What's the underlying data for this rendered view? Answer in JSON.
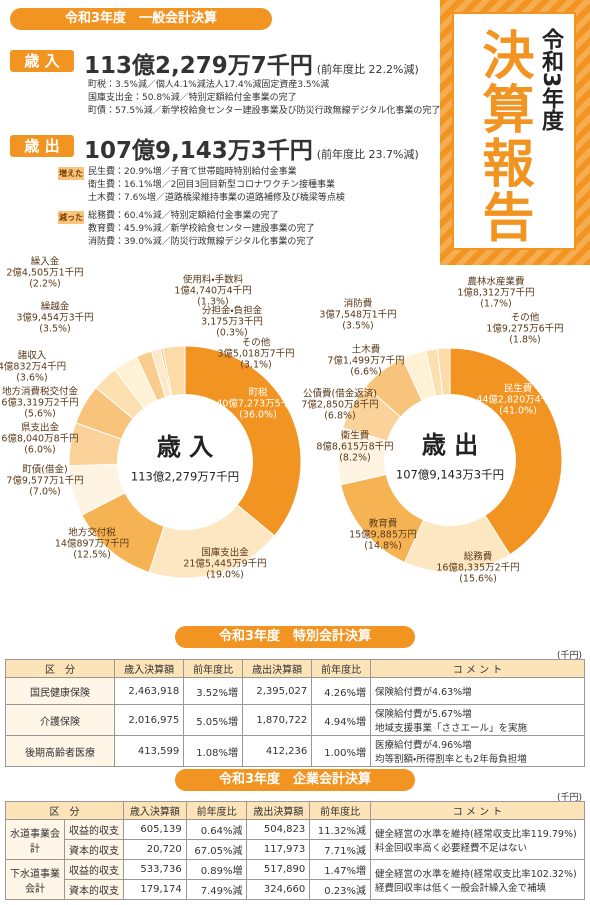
{
  "header": {
    "title": "令和3年度　一般会計決算",
    "badge_year": "令和3年度",
    "badge_title": "決算報告"
  },
  "revenue": {
    "label": "歳 入",
    "amount": "113億2,279万7千円",
    "change": "(前年度比 22.2%減)",
    "notes": [
      "町税：3.5%減／個人4.1%減法人17.4%減固定資産3.5%減",
      "国庫支出金：50.8%減／特別定額給付金事業の完了",
      "町債：57.5%減／新学校給食センター建設事業及び防災行政無線デジタル化事業の完了"
    ]
  },
  "expenditure": {
    "label": "歳 出",
    "amount": "107億9,143万3千円",
    "change": "(前年度比 23.7%減)",
    "increased": {
      "label": "増えた",
      "items": [
        "民生費：20.9%増／子育て世帯臨時特別給付金事業",
        "衛生費：16.1%増／2回目3回目新型コロナワクチン接種事業",
        "土木費：7.6%増／道路橋梁維持事業の道路補修及び橋梁等点検"
      ]
    },
    "decreased": {
      "label": "減った",
      "items": [
        "総務費：60.4%減／特別定額給付金事業の完了",
        "教育費：45.9%減／新学校給食センター建設事業の完了",
        "消防費：39.0%減／防災行政無線デジタル化事業の完了"
      ]
    }
  },
  "chart_data": [
    {
      "type": "pie",
      "center_label": "歳 入",
      "center_amount": "113億2,279万7千円",
      "categories": [
        "町税",
        "国庫支出金",
        "地方交付税",
        "町債(借金)",
        "県支出金",
        "地方消費税交付金",
        "諸収入",
        "繰越金",
        "繰入金",
        "使用料・手数料",
        "分担金・負担金",
        "その他"
      ],
      "values": [
        4072735,
        2154459,
        1408977,
        795771,
        680408,
        633192,
        408324,
        394543,
        245051,
        147404,
        31753,
        350187
      ],
      "value_labels": [
        "40億7,273万5千円",
        "21億5,445万9千円",
        "14億897万7千円",
        "7億9,577万1千円",
        "6億8,040万8千円",
        "6億3,319万2千円",
        "4億832万4千円",
        "3億9,454万3千円",
        "2億4,505万1千円",
        "1億4,740万4千円",
        "3,175万3千円",
        "3億5,018万7千円"
      ],
      "percents": [
        36.0,
        19.0,
        12.5,
        7.0,
        6.0,
        5.6,
        3.6,
        3.5,
        2.2,
        1.3,
        0.3,
        3.1
      ],
      "percent_labels": [
        "(36.0%)",
        "(19.0%)",
        "(12.5%)",
        "(7.0%)",
        "(6.0%)",
        "(5.6%)",
        "(3.6%)",
        "(3.5%)",
        "(2.2%)",
        "(1.3%)",
        "(0.3%)",
        "(3.1%)"
      ],
      "colors": [
        "#f29422",
        "#fde7c2",
        "#f6b354",
        "#fff4e2",
        "#fbd39a",
        "#f8c37a",
        "#fde0b0",
        "#fff1d6",
        "#f9cd8c",
        "#fde9c9",
        "#f6b354",
        "#fbdca9"
      ]
    },
    {
      "type": "pie",
      "center_label": "歳 出",
      "center_amount": "107億9,143万3千円",
      "categories": [
        "民生費",
        "総務費",
        "教育費",
        "衛生費",
        "公債費(借金返済)",
        "土木費",
        "消防費",
        "農林水産業費",
        "その他"
      ],
      "values": [
        4428204,
        1683352,
        1598850,
        886158,
        728508,
        714997,
        375481,
        183127,
        192756
      ],
      "value_labels": [
        "44億2,820万4千円",
        "16億8,335万2千円",
        "15億9,885万円",
        "8億8,615万8千円",
        "7億2,850万8千円",
        "7億1,499万7千円",
        "3億7,548万1千円",
        "1億8,312万7千円",
        "1億9,275万6千円"
      ],
      "percents": [
        41.0,
        15.6,
        14.8,
        8.2,
        6.8,
        6.6,
        3.5,
        1.7,
        1.8
      ],
      "percent_labels": [
        "(41.0%)",
        "(15.6%)",
        "(14.8%)",
        "(8.2%)",
        "(6.8%)",
        "(6.6%)",
        "(3.5%)",
        "(1.7%)",
        "(1.8%)"
      ],
      "colors": [
        "#f29422",
        "#fde7c2",
        "#f6b354",
        "#fff4e2",
        "#fbd39a",
        "#f8c37a",
        "#fff1d6",
        "#fde0b0",
        "#fbdca9"
      ]
    }
  ],
  "special_accounts": {
    "title": "令和3年度　特別会計決算",
    "unit": "(千円)",
    "columns": [
      "区　分",
      "歳入決算額",
      "前年度比",
      "歳出決算額",
      "前年度比",
      "コ メ ン ト"
    ],
    "rows": [
      {
        "name": "国民健康保険",
        "values": [
          "2,463,918",
          "3.52%増",
          "2,395,027",
          "4.26%増"
        ],
        "comment": [
          "保険給付費が4.63%増"
        ]
      },
      {
        "name": "介護保険",
        "values": [
          "2,016,975",
          "5.05%増",
          "1,870,722",
          "4.94%増"
        ],
        "comment": [
          "保険給付費が5.67%増",
          "地域支援事業「ささエール」を実施"
        ]
      },
      {
        "name": "後期高齢者医療",
        "values": [
          "413,599",
          "1.08%増",
          "412,236",
          "1.00%増"
        ],
        "comment": [
          "医療給付費が4.96%増",
          "均等割額・所得割率とも2年毎負担増"
        ]
      }
    ]
  },
  "enterprise_accounts": {
    "title": "令和3年度　企業会計決算",
    "unit": "(千円)",
    "columns": [
      "区　分",
      "歳入決算額",
      "前年度比",
      "歳出決算額",
      "前年度比",
      "コ メ ン ト"
    ],
    "rows": [
      {
        "name": "水道事業会計",
        "comment": [
          "健全経営の水準を維持(経常収支比率119.79%)",
          "料金回収率高く必要経費不足はない"
        ],
        "items": [
          {
            "name": "収益的収支",
            "values": [
              "605,139",
              "0.64%減",
              "504,823",
              "11.32%減"
            ]
          },
          {
            "name": "資本的収支",
            "values": [
              "20,720",
              "67.05%減",
              "117,973",
              "7.71%減"
            ]
          }
        ]
      },
      {
        "name": "下水道事業会計",
        "comment": [
          "健全経営の水準を維持(経常収支比率102.32%)",
          "経費回収率は低く一般会計繰入金で補填"
        ],
        "items": [
          {
            "name": "収益的収支",
            "values": [
              "533,736",
              "0.89%増",
              "517,890",
              "1.47%増"
            ]
          },
          {
            "name": "資本的収支",
            "values": [
              "179,174",
              "7.49%減",
              "324,660",
              "0.23%減"
            ]
          }
        ]
      }
    ]
  }
}
